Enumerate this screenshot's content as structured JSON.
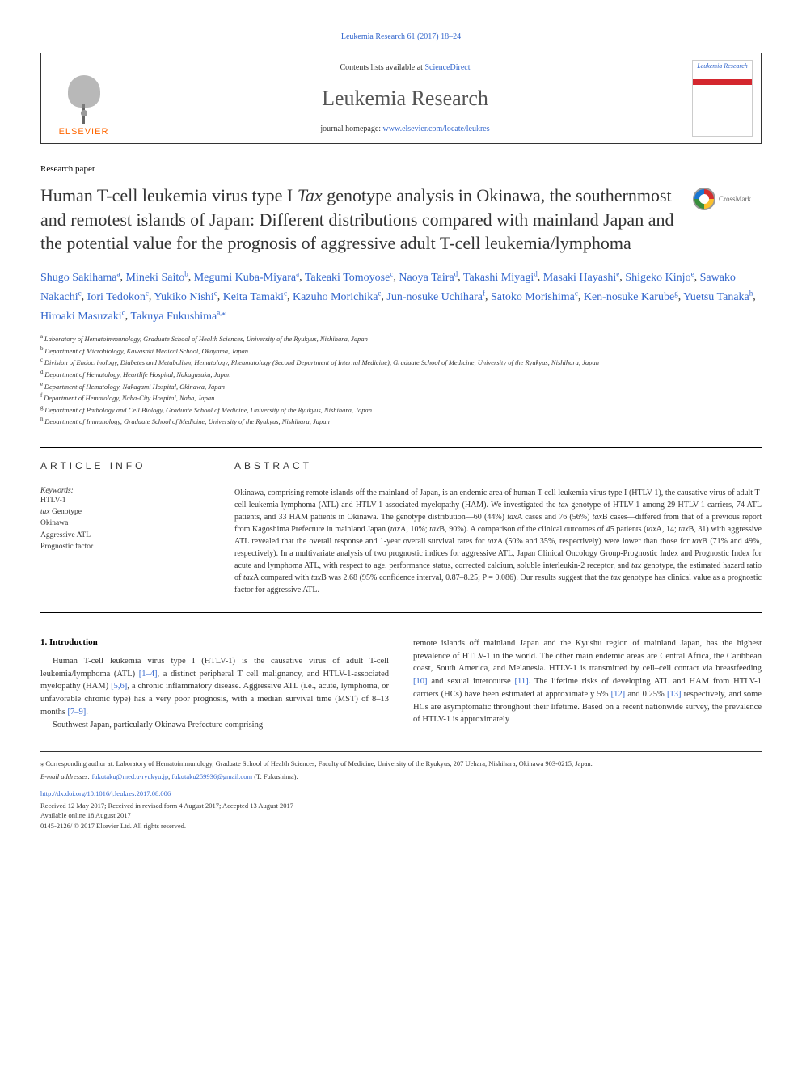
{
  "journal_ref": "Leukemia Research 61 (2017) 18–24",
  "header": {
    "publisher": "ELSEVIER",
    "contents_prefix": "Contents lists available at ",
    "contents_link": "ScienceDirect",
    "journal_name": "Leukemia Research",
    "homepage_prefix": "journal homepage: ",
    "homepage_url": "www.elsevier.com/locate/leukres",
    "cover_title": "Leukemia Research"
  },
  "article_type": "Research paper",
  "title_parts": {
    "p1": "Human T-cell leukemia virus type I ",
    "p2": "Tax",
    "p3": " genotype analysis in Okinawa, the southernmost and remotest islands of Japan: Different distributions compared with mainland Japan and the potential value for the prognosis of aggressive adult T-cell leukemia/lymphoma"
  },
  "crossmark": "CrossMark",
  "authors": [
    {
      "name": "Shugo Sakihama",
      "aff": "a"
    },
    {
      "name": "Mineki Saito",
      "aff": "b"
    },
    {
      "name": "Megumi Kuba-Miyara",
      "aff": "a"
    },
    {
      "name": "Takeaki Tomoyose",
      "aff": "c"
    },
    {
      "name": "Naoya Taira",
      "aff": "d"
    },
    {
      "name": "Takashi Miyagi",
      "aff": "d"
    },
    {
      "name": "Masaki Hayashi",
      "aff": "e"
    },
    {
      "name": "Shigeko Kinjo",
      "aff": "e"
    },
    {
      "name": "Sawako Nakachi",
      "aff": "c"
    },
    {
      "name": "Iori Tedokon",
      "aff": "c"
    },
    {
      "name": "Yukiko Nishi",
      "aff": "c"
    },
    {
      "name": "Keita Tamaki",
      "aff": "c"
    },
    {
      "name": "Kazuho Morichika",
      "aff": "c"
    },
    {
      "name": "Jun-nosuke Uchihara",
      "aff": "f"
    },
    {
      "name": "Satoko Morishima",
      "aff": "c"
    },
    {
      "name": "Ken-nosuke Karube",
      "aff": "g"
    },
    {
      "name": "Yuetsu Tanaka",
      "aff": "h"
    },
    {
      "name": "Hiroaki Masuzaki",
      "aff": "c"
    },
    {
      "name": "Takuya Fukushima",
      "aff": "a,⁎"
    }
  ],
  "affiliations": [
    {
      "sup": "a",
      "text": "Laboratory of Hematoimmunology, Graduate School of Health Sciences, University of the Ryukyus, Nishihara, Japan"
    },
    {
      "sup": "b",
      "text": "Department of Microbiology, Kawasaki Medical School, Okayama, Japan"
    },
    {
      "sup": "c",
      "text": "Division of Endocrinology, Diabetes and Metabolism, Hematology, Rheumatology (Second Department of Internal Medicine), Graduate School of Medicine, University of the Ryukyus, Nishihara, Japan"
    },
    {
      "sup": "d",
      "text": "Department of Hematology, Heartlife Hospital, Nakagusuku, Japan"
    },
    {
      "sup": "e",
      "text": "Department of Hematology, Nakagami Hospital, Okinawa, Japan"
    },
    {
      "sup": "f",
      "text": "Department of Hematology, Naha-City Hospital, Naha, Japan"
    },
    {
      "sup": "g",
      "text": "Department of Pathology and Cell Biology, Graduate School of Medicine, University of the Ryukyus, Nishihara, Japan"
    },
    {
      "sup": "h",
      "text": "Department of Immunology, Graduate School of Medicine, University of the Ryukyus, Nishihara, Japan"
    }
  ],
  "article_info_heading": "ARTICLE INFO",
  "abstract_heading": "ABSTRACT",
  "keywords_label": "Keywords:",
  "keywords": [
    "HTLV-1",
    "tax Genotype",
    "Okinawa",
    "Aggressive ATL",
    "Prognostic factor"
  ],
  "abstract": "Okinawa, comprising remote islands off the mainland of Japan, is an endemic area of human T-cell leukemia virus type I (HTLV-1), the causative virus of adult T-cell leukemia-lymphoma (ATL) and HTLV-1-associated myelopathy (HAM). We investigated the tax genotype of HTLV-1 among 29 HTLV-1 carriers, 74 ATL patients, and 33 HAM patients in Okinawa. The genotype distribution—60 (44%) taxA cases and 76 (56%) taxB cases—differed from that of a previous report from Kagoshima Prefecture in mainland Japan (taxA, 10%; taxB, 90%). A comparison of the clinical outcomes of 45 patients (taxA, 14; taxB, 31) with aggressive ATL revealed that the overall response and 1-year overall survival rates for taxA (50% and 35%, respectively) were lower than those for taxB (71% and 49%, respectively). In a multivariate analysis of two prognostic indices for aggressive ATL, Japan Clinical Oncology Group-Prognostic Index and Prognostic Index for acute and lymphoma ATL, with respect to age, performance status, corrected calcium, soluble interleukin-2 receptor, and tax genotype, the estimated hazard ratio of taxA compared with taxB was 2.68 (95% confidence interval, 0.87–8.25; P = 0.086). Our results suggest that the tax genotype has clinical value as a prognostic factor for aggressive ATL.",
  "intro_heading": "1. Introduction",
  "intro": {
    "p1a": "Human T-cell leukemia virus type I (HTLV-1) is the causative virus of adult T-cell leukemia/lymphoma (ATL) ",
    "p1b": "[1–4]",
    "p1c": ", a distinct peripheral T cell malignancy, and HTLV-1-associated myelopathy (HAM) ",
    "p1d": "[5,6]",
    "p1e": ", a chronic inflammatory disease. Aggressive ATL (i.e., acute, lymphoma, or unfavorable chronic type) has a very poor prognosis, with a median survival time (MST) of 8–13 months ",
    "p1f": "[7–9]",
    "p1g": ".",
    "p2": "Southwest Japan, particularly Okinawa Prefecture comprising",
    "p3a": "remote islands off mainland Japan and the Kyushu region of mainland Japan, has the highest prevalence of HTLV-1 in the world. The other main endemic areas are Central Africa, the Caribbean coast, South America, and Melanesia. HTLV-1 is transmitted by cell–cell contact via breastfeeding ",
    "p3b": "[10]",
    "p3c": " and sexual intercourse ",
    "p3d": "[11]",
    "p3e": ". The lifetime risks of developing ATL and HAM from HTLV-1 carriers (HCs) have been estimated at approximately 5% ",
    "p3f": "[12]",
    "p3g": " and 0.25% ",
    "p3h": "[13]",
    "p3i": " respectively, and some HCs are asymptomatic throughout their lifetime. Based on a recent nationwide survey, the prevalence of HTLV-1 is approximately"
  },
  "footer": {
    "corr": "⁎ Corresponding author at: Laboratory of Hematoimmunology, Graduate School of Health Sciences, Faculty of Medicine, University of the Ryukyus, 207 Uehara, Nishihara, Okinawa 903-0215, Japan.",
    "email_label": "E-mail addresses: ",
    "email1": "fukutaku@med.u-ryukyu.jp",
    "email2": "fukutaku259936@gmail.com",
    "email_suffix": " (T. Fukushima).",
    "doi": "http://dx.doi.org/10.1016/j.leukres.2017.08.006",
    "received": "Received 12 May 2017; Received in revised form 4 August 2017; Accepted 13 August 2017",
    "available": "Available online 18 August 2017",
    "copyright": "0145-2126/ © 2017 Elsevier Ltd. All rights reserved."
  },
  "colors": {
    "link": "#3366cc",
    "publisher": "#ff6600",
    "text": "#333333",
    "border": "#000000"
  }
}
